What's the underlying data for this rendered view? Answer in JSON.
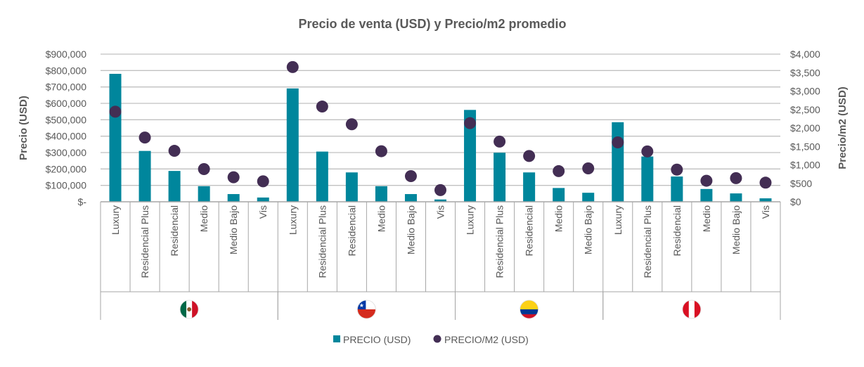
{
  "chart_data": {
    "type": "bar+scatter",
    "title": "Precio de venta (USD) y Precio/m2 promedio",
    "ylabel": "Precio (USD)",
    "y2label": "Precio/m2 (USD)",
    "ylim": [
      0,
      900000
    ],
    "y2lim": [
      0,
      4000
    ],
    "yticks": [
      "$-",
      "$100,000",
      "$200,000",
      "$300,000",
      "$400,000",
      "$500,000",
      "$600,000",
      "$700,000",
      "$800,000",
      "$900,000"
    ],
    "y2ticks": [
      "$0",
      "$500",
      "$1,000",
      "$1,500",
      "$2,000",
      "$2,500",
      "$3,000",
      "$3,500",
      "$4,000"
    ],
    "grid": true,
    "legend_position": "bottom",
    "groups": [
      {
        "flag": "mexico-flag-icon",
        "categories": [
          "Luxury",
          "Residencial Plus",
          "Residencial",
          "Medio",
          "Medio Bajo",
          "Vis"
        ]
      },
      {
        "flag": "chile-flag-icon",
        "categories": [
          "Luxury",
          "Residencial Plus",
          "Residencial",
          "Medio",
          "Medio Bajo",
          "Vis"
        ]
      },
      {
        "flag": "colombia-flag-icon",
        "categories": [
          "Luxury",
          "Residencial Plus",
          "Residencial",
          "Medio",
          "Medio Bajo"
        ]
      },
      {
        "flag": "peru-flag-icon",
        "categories": [
          "Luxury",
          "Residencial Plus",
          "Residencial",
          "Medio",
          "Medio Bajo",
          "Vis"
        ]
      }
    ],
    "series": [
      {
        "name": "PRECIO (USD)",
        "type": "bar",
        "axis": "left",
        "color": "#00869C",
        "values": [
          780000,
          310000,
          188000,
          95000,
          47000,
          26000,
          691000,
          306000,
          179000,
          95000,
          47000,
          14000,
          560000,
          299000,
          179000,
          84000,
          55000,
          485000,
          276000,
          154000,
          78000,
          51000,
          21000
        ]
      },
      {
        "name": "PRECIO/M2 (USD)",
        "type": "scatter",
        "axis": "right",
        "color": "#432E54",
        "values": [
          2440,
          1740,
          1380,
          885,
          665,
          555,
          3650,
          2580,
          2100,
          1370,
          695,
          316,
          2130,
          1630,
          1240,
          830,
          905,
          1610,
          1365,
          872,
          570,
          640,
          518
        ]
      }
    ]
  }
}
